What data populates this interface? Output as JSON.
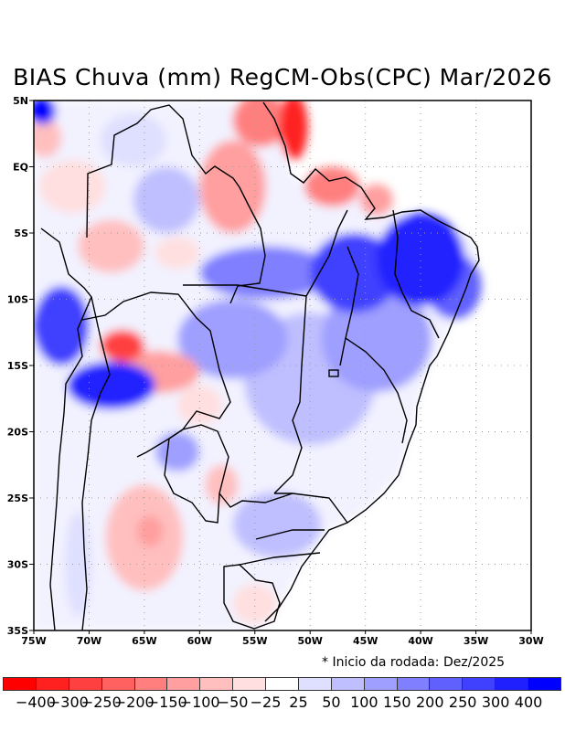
{
  "title": "BIAS Chuva (mm) RegCM-Obs(CPC) Mar/2026",
  "note": "* Inicio da rodada: Dez/2025",
  "map": {
    "lon_range": [
      -75,
      -30
    ],
    "lat_range": [
      -35,
      5
    ],
    "lat_ticks": [
      {
        "value": 5,
        "label": "5N"
      },
      {
        "value": 0,
        "label": "EQ"
      },
      {
        "value": -5,
        "label": "5S"
      },
      {
        "value": -10,
        "label": "10S"
      },
      {
        "value": -15,
        "label": "15S"
      },
      {
        "value": -20,
        "label": "20S"
      },
      {
        "value": -25,
        "label": "25S"
      },
      {
        "value": -30,
        "label": "30S"
      },
      {
        "value": -35,
        "label": "35S"
      }
    ],
    "lon_ticks": [
      {
        "value": -75,
        "label": "75W"
      },
      {
        "value": -70,
        "label": "70W"
      },
      {
        "value": -65,
        "label": "65W"
      },
      {
        "value": -60,
        "label": "60W"
      },
      {
        "value": -55,
        "label": "55W"
      },
      {
        "value": -50,
        "label": "50W"
      },
      {
        "value": -45,
        "label": "45W"
      },
      {
        "value": -40,
        "label": "40W"
      },
      {
        "value": -35,
        "label": "35W"
      },
      {
        "value": -30,
        "label": "30W"
      }
    ],
    "bias_patches": [
      {
        "lon": -74.2,
        "lat": 4.2,
        "rx": 1.2,
        "ry": 1.0,
        "level": 400
      },
      {
        "lon": -74,
        "lat": 2.2,
        "rx": 1.5,
        "ry": 1.5,
        "level": -100
      },
      {
        "lon": -71.5,
        "lat": -1.5,
        "rx": 3,
        "ry": 2,
        "level": -50
      },
      {
        "lon": -68,
        "lat": -6,
        "rx": 3,
        "ry": 2,
        "level": -100
      },
      {
        "lon": -62,
        "lat": -6.5,
        "rx": 2,
        "ry": 1.2,
        "level": -50
      },
      {
        "lon": -57,
        "lat": -1.5,
        "rx": 3,
        "ry": 3.5,
        "level": -150
      },
      {
        "lon": -54.5,
        "lat": 3.5,
        "rx": 2.5,
        "ry": 2,
        "level": -200
      },
      {
        "lon": -51.5,
        "lat": 3,
        "rx": 1.3,
        "ry": 2.5,
        "level": -400
      },
      {
        "lon": -48,
        "lat": -1.5,
        "rx": 2.5,
        "ry": 1.5,
        "level": -200
      },
      {
        "lon": -44,
        "lat": -2.5,
        "rx": 1.5,
        "ry": 1.2,
        "level": -150
      },
      {
        "lon": -63,
        "lat": -2.5,
        "rx": 3,
        "ry": 2.5,
        "level": 50
      },
      {
        "lon": -66,
        "lat": 2,
        "rx": 3,
        "ry": 2,
        "level": 25
      },
      {
        "lon": -54,
        "lat": -8,
        "rx": 6,
        "ry": 2,
        "level": 150
      },
      {
        "lon": -46,
        "lat": -8,
        "rx": 4,
        "ry": 3,
        "level": 250
      },
      {
        "lon": -40,
        "lat": -7,
        "rx": 4,
        "ry": 3.5,
        "level": 300
      },
      {
        "lon": -37,
        "lat": -9,
        "rx": 2.5,
        "ry": 2.5,
        "level": 200
      },
      {
        "lon": -44,
        "lat": -13,
        "rx": 5,
        "ry": 4,
        "level": 100
      },
      {
        "lon": -50,
        "lat": -16,
        "rx": 6,
        "ry": 5,
        "level": 50
      },
      {
        "lon": -57,
        "lat": -13,
        "rx": 5,
        "ry": 3,
        "level": 100
      },
      {
        "lon": -72.5,
        "lat": -12,
        "rx": 2.5,
        "ry": 3,
        "level": 250
      },
      {
        "lon": -68,
        "lat": -16.5,
        "rx": 4,
        "ry": 1.8,
        "level": 300
      },
      {
        "lon": -67,
        "lat": -13.5,
        "rx": 2,
        "ry": 1.2,
        "level": -300
      },
      {
        "lon": -64,
        "lat": -15.5,
        "rx": 4,
        "ry": 1.6,
        "level": -150
      },
      {
        "lon": -60,
        "lat": -18,
        "rx": 2,
        "ry": 1.5,
        "level": -50
      },
      {
        "lon": -62,
        "lat": -21.5,
        "rx": 2,
        "ry": 1.5,
        "level": 100
      },
      {
        "lon": -65,
        "lat": -28,
        "rx": 3.5,
        "ry": 4,
        "level": -100
      },
      {
        "lon": -64.5,
        "lat": -27.5,
        "rx": 1.2,
        "ry": 1.2,
        "level": -150
      },
      {
        "lon": -58,
        "lat": -24,
        "rx": 1.5,
        "ry": 1.5,
        "level": -100
      },
      {
        "lon": -53,
        "lat": -27,
        "rx": 4,
        "ry": 2.5,
        "level": 50
      },
      {
        "lon": -55,
        "lat": -33,
        "rx": 2,
        "ry": 1.5,
        "level": -50
      },
      {
        "lon": -71,
        "lat": -30,
        "rx": 1.2,
        "ry": 4,
        "level": 25
      }
    ]
  },
  "colorbar": {
    "colors": [
      "#ff0000",
      "#ff2020",
      "#ff4040",
      "#ff6060",
      "#ff7f7f",
      "#ff9f9f",
      "#ffbfbf",
      "#ffdfdf",
      "#ffffff",
      "#dfdfff",
      "#bfbfff",
      "#9f9fff",
      "#7f7fff",
      "#6060ff",
      "#4040ff",
      "#2020ff",
      "#0000ff"
    ],
    "labels": [
      "-400",
      "-300",
      "-250",
      "-200",
      "-150",
      "-100",
      "-50",
      "-25",
      "25",
      "50",
      "100",
      "150",
      "200",
      "250",
      "300",
      "400"
    ]
  }
}
